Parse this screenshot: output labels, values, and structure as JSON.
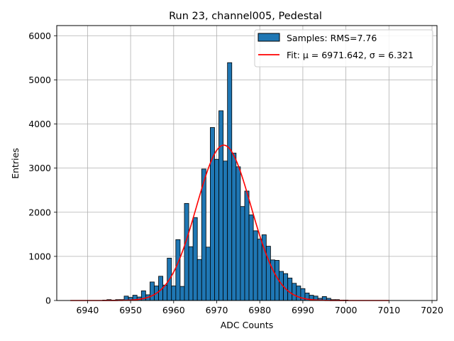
{
  "chart_data": {
    "type": "bar",
    "title": "Run 23, channel005, Pedestal",
    "xlabel": "ADC Counts",
    "ylabel": "Entries",
    "xlim": [
      6932.85,
      7021.15
    ],
    "ylim": [
      0,
      6230
    ],
    "x_ticks": [
      6940,
      6950,
      6960,
      6970,
      6980,
      6990,
      7000,
      7010,
      7020
    ],
    "y_ticks": [
      0,
      1000,
      2000,
      3000,
      4000,
      5000,
      6000
    ],
    "grid": true,
    "legend_position": "top-right",
    "bin_width": 1,
    "bars": {
      "name": "Samples: RMS=7.76",
      "color": "#1f77b4",
      "edge_color": "#000000",
      "x": [
        6944,
        6945,
        6946,
        6947,
        6948,
        6949,
        6950,
        6951,
        6952,
        6953,
        6954,
        6955,
        6956,
        6957,
        6958,
        6959,
        6960,
        6961,
        6962,
        6963,
        6964,
        6965,
        6966,
        6967,
        6968,
        6969,
        6970,
        6971,
        6972,
        6973,
        6974,
        6975,
        6976,
        6977,
        6978,
        6979,
        6980,
        6981,
        6982,
        6983,
        6984,
        6985,
        6986,
        6987,
        6988,
        6989,
        6990,
        6991,
        6992,
        6993,
        6994,
        6995,
        6996,
        6997,
        6998,
        6999,
        7000
      ],
      "values": [
        10,
        20,
        10,
        20,
        20,
        100,
        70,
        120,
        80,
        220,
        130,
        420,
        330,
        550,
        350,
        960,
        330,
        1380,
        320,
        2200,
        1220,
        1880,
        930,
        2980,
        1210,
        3920,
        3200,
        4300,
        3160,
        5390,
        3340,
        3030,
        2130,
        2480,
        1940,
        1580,
        1390,
        1490,
        1230,
        920,
        910,
        660,
        610,
        510,
        390,
        330,
        270,
        170,
        120,
        100,
        50,
        90,
        50,
        20,
        20,
        10,
        10
      ]
    },
    "fit": {
      "name": "Fit: μ = 6971.642, σ = 6.321",
      "color": "#ff0000",
      "mu": 6971.642,
      "sigma": 6.321,
      "amplitude": 3520,
      "x_range": [
        6936,
        7010
      ]
    }
  }
}
